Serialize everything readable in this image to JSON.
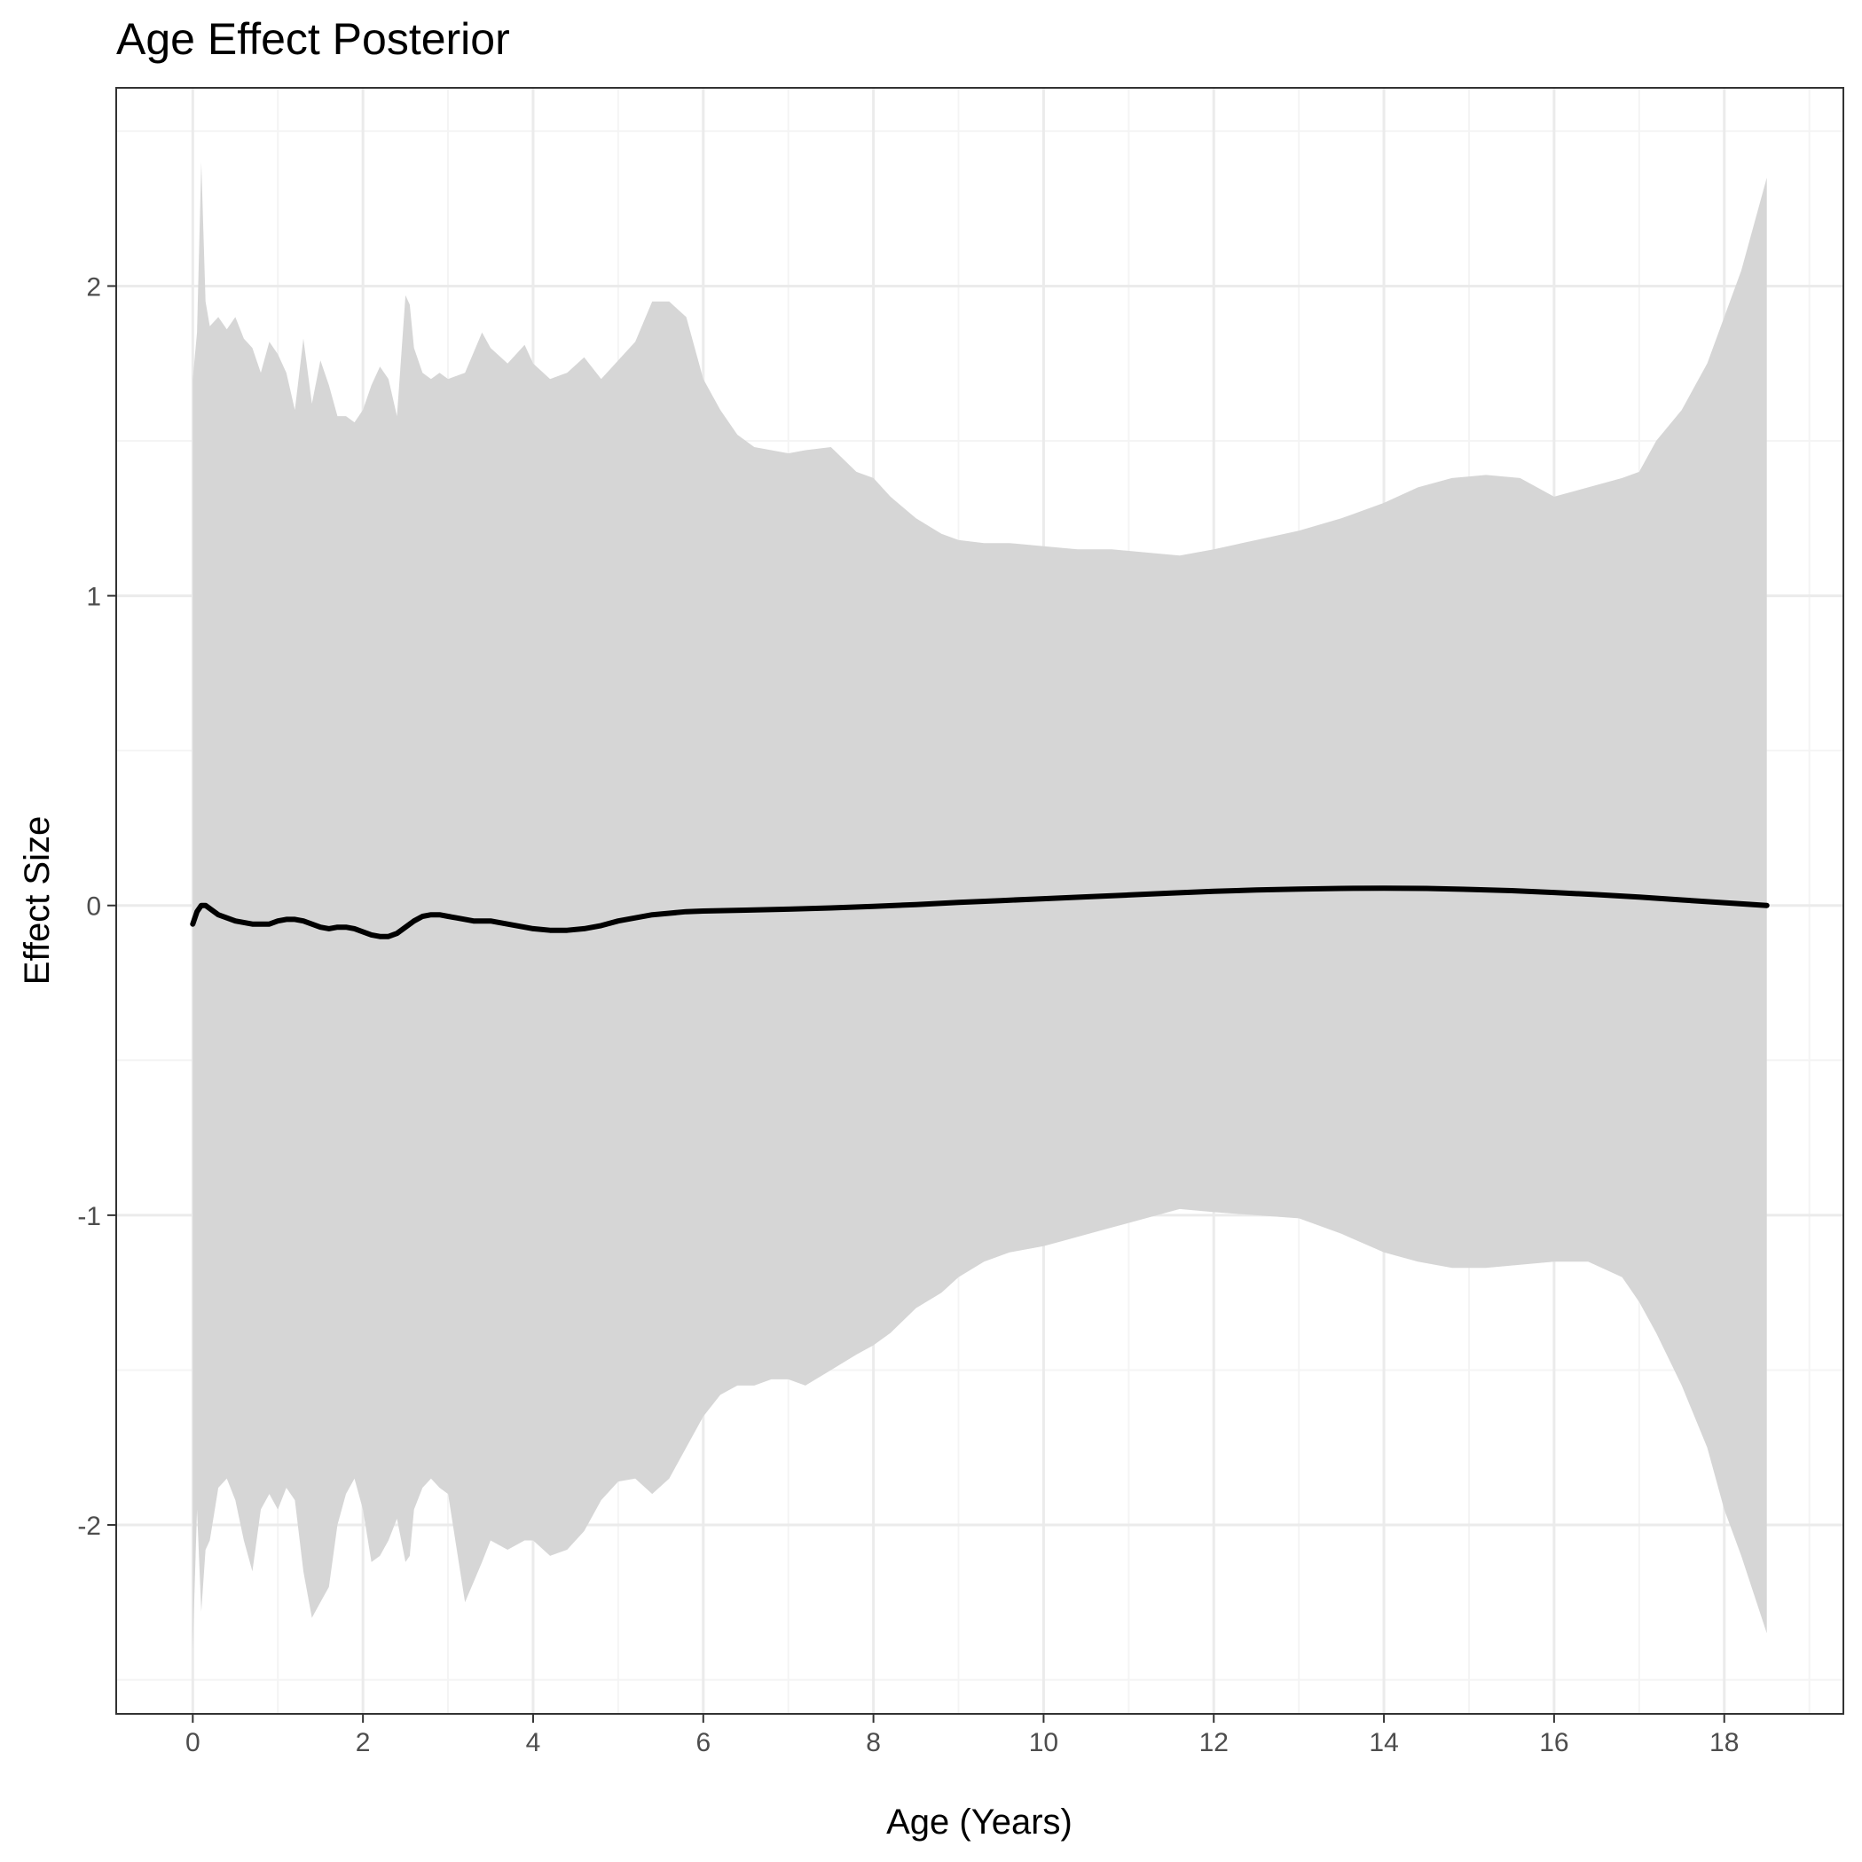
{
  "chart_data": {
    "type": "area",
    "title": "Age Effect Posterior",
    "xlabel": "Age (Years)",
    "ylabel": "Effect Size",
    "xlim": [
      -0.9,
      19.4
    ],
    "ylim": [
      -2.61,
      2.64
    ],
    "x_ticks": [
      0,
      2,
      4,
      6,
      8,
      10,
      12,
      14,
      16,
      18
    ],
    "x_tick_labels": [
      "0",
      "2",
      "4",
      "6",
      "8",
      "10",
      "12",
      "14",
      "16",
      "18"
    ],
    "y_ticks": [
      -2,
      -1,
      0,
      1,
      2
    ],
    "y_tick_labels": [
      "-2",
      "-1",
      "0",
      "1",
      "2"
    ],
    "grid": true,
    "legend": "none",
    "colors": {
      "band": "#d6d6d6",
      "line": "#000000",
      "grid_major": "#ebebeb",
      "grid_minor": "#f4f4f4",
      "panel_border": "#333333"
    },
    "series": [
      {
        "role": "credible-interval-upper",
        "x": [
          0,
          0.05,
          0.1,
          0.15,
          0.2,
          0.3,
          0.4,
          0.5,
          0.6,
          0.7,
          0.8,
          0.9,
          1.0,
          1.1,
          1.2,
          1.3,
          1.4,
          1.5,
          1.6,
          1.7,
          1.8,
          1.9,
          2.0,
          2.1,
          2.2,
          2.3,
          2.4,
          2.5,
          2.55,
          2.6,
          2.7,
          2.8,
          2.9,
          3.0,
          3.2,
          3.4,
          3.5,
          3.7,
          3.9,
          4.0,
          4.2,
          4.4,
          4.6,
          4.8,
          5.0,
          5.2,
          5.4,
          5.6,
          5.8,
          6.0,
          6.2,
          6.4,
          6.6,
          6.8,
          7.0,
          7.2,
          7.5,
          7.8,
          8.0,
          8.2,
          8.5,
          8.8,
          9.0,
          9.3,
          9.6,
          10.0,
          10.4,
          10.8,
          11.2,
          11.6,
          12.0,
          12.5,
          13.0,
          13.5,
          14.0,
          14.4,
          14.8,
          15.2,
          15.6,
          16.0,
          16.4,
          16.8,
          17.0,
          17.2,
          17.5,
          17.8,
          18.0,
          18.2,
          18.5
        ],
        "values": [
          1.7,
          1.85,
          2.4,
          1.95,
          1.87,
          1.9,
          1.86,
          1.9,
          1.83,
          1.8,
          1.72,
          1.82,
          1.78,
          1.72,
          1.6,
          1.83,
          1.62,
          1.76,
          1.68,
          1.58,
          1.58,
          1.56,
          1.6,
          1.68,
          1.74,
          1.7,
          1.58,
          1.97,
          1.94,
          1.8,
          1.72,
          1.7,
          1.72,
          1.7,
          1.72,
          1.85,
          1.8,
          1.75,
          1.81,
          1.75,
          1.7,
          1.72,
          1.77,
          1.7,
          1.76,
          1.82,
          1.95,
          1.95,
          1.9,
          1.7,
          1.6,
          1.52,
          1.48,
          1.47,
          1.46,
          1.47,
          1.48,
          1.4,
          1.38,
          1.32,
          1.25,
          1.2,
          1.18,
          1.17,
          1.17,
          1.16,
          1.15,
          1.15,
          1.14,
          1.13,
          1.15,
          1.18,
          1.21,
          1.25,
          1.3,
          1.35,
          1.38,
          1.39,
          1.38,
          1.32,
          1.35,
          1.38,
          1.4,
          1.5,
          1.6,
          1.75,
          1.9,
          2.05,
          2.35
        ]
      },
      {
        "role": "credible-interval-lower",
        "x": [
          0,
          0.05,
          0.1,
          0.15,
          0.2,
          0.3,
          0.4,
          0.5,
          0.6,
          0.7,
          0.8,
          0.9,
          1.0,
          1.1,
          1.2,
          1.3,
          1.4,
          1.5,
          1.6,
          1.7,
          1.8,
          1.9,
          2.0,
          2.1,
          2.2,
          2.3,
          2.4,
          2.5,
          2.55,
          2.6,
          2.7,
          2.8,
          2.9,
          3.0,
          3.2,
          3.4,
          3.5,
          3.7,
          3.9,
          4.0,
          4.2,
          4.4,
          4.6,
          4.8,
          5.0,
          5.2,
          5.4,
          5.6,
          5.8,
          6.0,
          6.2,
          6.4,
          6.6,
          6.8,
          7.0,
          7.2,
          7.5,
          7.8,
          8.0,
          8.2,
          8.5,
          8.8,
          9.0,
          9.3,
          9.6,
          10.0,
          10.4,
          10.8,
          11.2,
          11.6,
          12.0,
          12.5,
          13.0,
          13.5,
          14.0,
          14.4,
          14.8,
          15.2,
          15.6,
          16.0,
          16.4,
          16.8,
          17.0,
          17.2,
          17.5,
          17.8,
          18.0,
          18.2,
          18.5
        ],
        "values": [
          -2.4,
          -1.95,
          -2.28,
          -2.08,
          -2.05,
          -1.88,
          -1.85,
          -1.92,
          -2.05,
          -2.15,
          -1.95,
          -1.9,
          -1.95,
          -1.88,
          -1.92,
          -2.15,
          -2.3,
          -2.25,
          -2.2,
          -2.0,
          -1.9,
          -1.85,
          -1.95,
          -2.12,
          -2.1,
          -2.05,
          -1.98,
          -2.12,
          -2.1,
          -1.95,
          -1.88,
          -1.85,
          -1.88,
          -1.9,
          -2.25,
          -2.12,
          -2.05,
          -2.08,
          -2.05,
          -2.05,
          -2.1,
          -2.08,
          -2.02,
          -1.92,
          -1.86,
          -1.85,
          -1.9,
          -1.85,
          -1.75,
          -1.65,
          -1.58,
          -1.55,
          -1.55,
          -1.53,
          -1.53,
          -1.55,
          -1.5,
          -1.45,
          -1.42,
          -1.38,
          -1.3,
          -1.25,
          -1.2,
          -1.15,
          -1.12,
          -1.1,
          -1.07,
          -1.04,
          -1.01,
          -0.98,
          -0.99,
          -1.0,
          -1.01,
          -1.06,
          -1.12,
          -1.15,
          -1.17,
          -1.17,
          -1.16,
          -1.15,
          -1.15,
          -1.2,
          -1.28,
          -1.38,
          -1.55,
          -1.75,
          -1.95,
          -2.1,
          -2.35
        ]
      },
      {
        "role": "posterior-mean",
        "x": [
          0,
          0.05,
          0.1,
          0.15,
          0.2,
          0.3,
          0.4,
          0.5,
          0.6,
          0.7,
          0.8,
          0.9,
          1.0,
          1.1,
          1.2,
          1.3,
          1.4,
          1.5,
          1.6,
          1.7,
          1.8,
          1.9,
          2.0,
          2.1,
          2.2,
          2.3,
          2.4,
          2.5,
          2.6,
          2.7,
          2.8,
          2.9,
          3.0,
          3.1,
          3.2,
          3.3,
          3.4,
          3.5,
          3.6,
          3.8,
          4.0,
          4.2,
          4.4,
          4.6,
          4.8,
          5.0,
          5.2,
          5.4,
          5.6,
          5.8,
          6.0,
          6.5,
          7.0,
          7.5,
          8.0,
          8.5,
          9.0,
          9.5,
          10.0,
          10.5,
          11.0,
          11.5,
          12.0,
          12.5,
          13.0,
          13.5,
          14.0,
          14.5,
          15.0,
          15.5,
          16.0,
          16.5,
          17.0,
          17.5,
          18.0,
          18.5
        ],
        "values": [
          -0.06,
          -0.02,
          0.0,
          0.0,
          -0.01,
          -0.03,
          -0.04,
          -0.05,
          -0.055,
          -0.06,
          -0.06,
          -0.06,
          -0.05,
          -0.045,
          -0.045,
          -0.05,
          -0.06,
          -0.07,
          -0.075,
          -0.07,
          -0.07,
          -0.075,
          -0.085,
          -0.095,
          -0.1,
          -0.1,
          -0.09,
          -0.07,
          -0.05,
          -0.035,
          -0.03,
          -0.03,
          -0.035,
          -0.04,
          -0.045,
          -0.05,
          -0.05,
          -0.05,
          -0.055,
          -0.065,
          -0.075,
          -0.08,
          -0.08,
          -0.075,
          -0.065,
          -0.05,
          -0.04,
          -0.03,
          -0.025,
          -0.02,
          -0.018,
          -0.015,
          -0.012,
          -0.008,
          -0.003,
          0.003,
          0.01,
          0.016,
          0.022,
          0.028,
          0.034,
          0.04,
          0.046,
          0.05,
          0.053,
          0.055,
          0.056,
          0.055,
          0.052,
          0.048,
          0.042,
          0.035,
          0.027,
          0.018,
          0.009,
          0.0
        ]
      }
    ]
  }
}
